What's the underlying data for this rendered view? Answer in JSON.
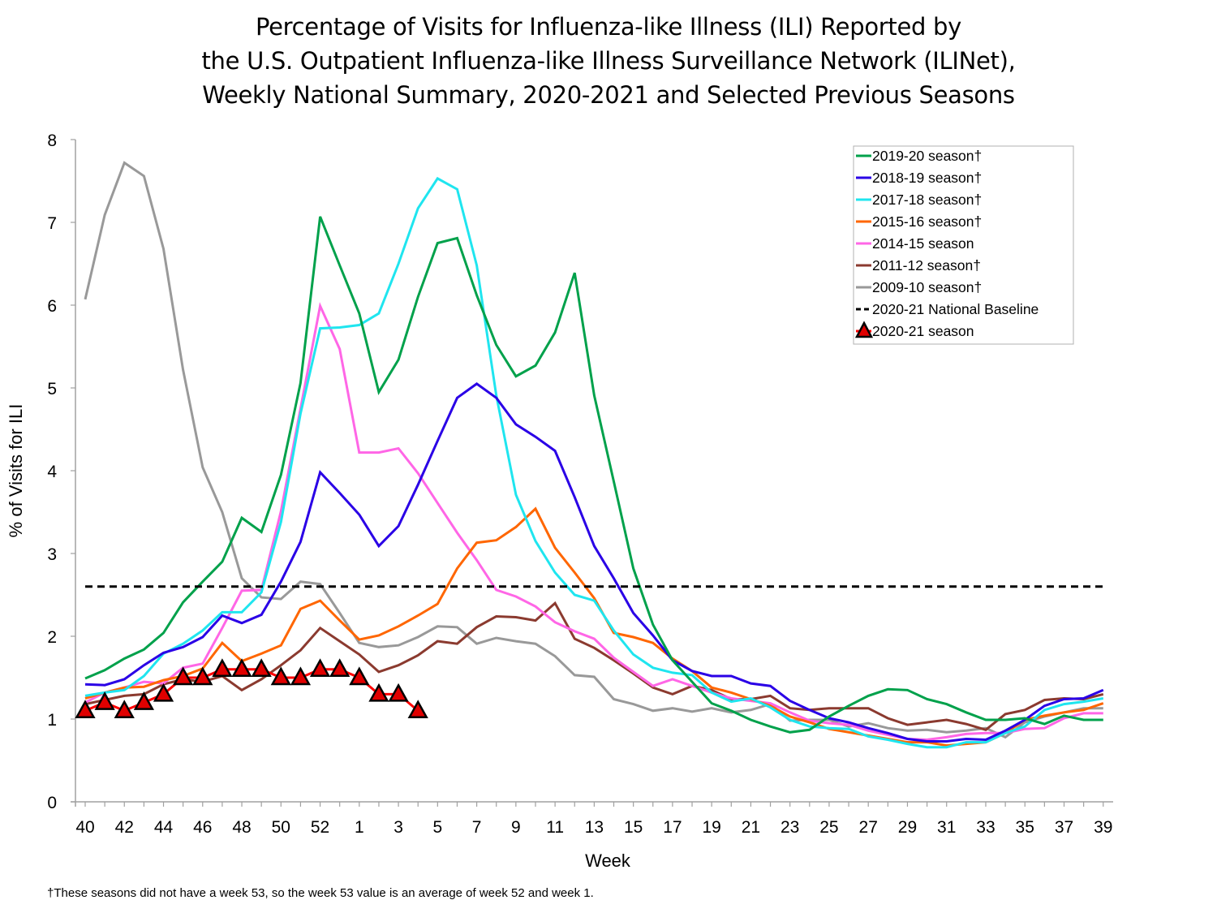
{
  "chart_data": {
    "type": "line",
    "title_lines": [
      "Percentage of Visits for Influenza-like Illness (ILI) Reported by",
      "the U.S. Outpatient Influenza-like Illness Surveillance Network (ILINet),",
      "Weekly National Summary, 2020-2021 and Selected Previous Seasons"
    ],
    "xlabel": "Week",
    "ylabel": "% of Visits for ILI",
    "ylim": [
      0,
      8
    ],
    "yticks": [
      0,
      1,
      2,
      3,
      4,
      5,
      6,
      7,
      8
    ],
    "x": [
      40,
      41,
      42,
      43,
      44,
      45,
      46,
      47,
      48,
      49,
      50,
      51,
      52,
      53,
      1,
      2,
      3,
      4,
      5,
      6,
      7,
      8,
      9,
      10,
      11,
      12,
      13,
      14,
      15,
      16,
      17,
      18,
      19,
      20,
      21,
      22,
      23,
      24,
      25,
      26,
      27,
      28,
      29,
      30,
      31,
      32,
      33,
      34,
      35,
      36,
      37,
      38,
      39
    ],
    "xtick_labels": [
      "40",
      "42",
      "44",
      "46",
      "48",
      "50",
      "52",
      "1",
      "3",
      "5",
      "7",
      "9",
      "11",
      "13",
      "15",
      "17",
      "19",
      "21",
      "23",
      "25",
      "27",
      "29",
      "31",
      "33",
      "35",
      "37",
      "39"
    ],
    "grid": false,
    "legend_position": "top-right",
    "series": [
      {
        "name": "2019-20 season†",
        "color": "#00A14B",
        "style": "solid",
        "values": [
          1.49,
          1.59,
          1.73,
          1.84,
          2.04,
          2.41,
          2.66,
          2.9,
          3.43,
          3.26,
          3.95,
          5.06,
          7.07,
          6.48,
          5.9,
          4.95,
          5.34,
          6.1,
          6.75,
          6.81,
          6.12,
          5.52,
          5.14,
          5.27,
          5.67,
          6.39,
          4.91,
          3.87,
          2.82,
          2.14,
          1.71,
          1.45,
          1.19,
          1.1,
          0.99,
          0.91,
          0.84,
          0.87,
          1.03,
          1.16,
          1.28,
          1.36,
          1.35,
          1.24,
          1.18,
          1.08,
          0.99,
          0.99,
          1.01,
          0.94,
          1.04,
          0.99,
          0.99
        ]
      },
      {
        "name": "2018-19 season†",
        "color": "#2A00E6",
        "style": "solid",
        "values": [
          1.42,
          1.41,
          1.48,
          1.65,
          1.8,
          1.87,
          1.99,
          2.25,
          2.16,
          2.26,
          2.66,
          3.14,
          3.98,
          3.73,
          3.47,
          3.09,
          3.33,
          3.83,
          4.36,
          4.88,
          5.05,
          4.88,
          4.56,
          4.41,
          4.24,
          3.68,
          3.09,
          2.7,
          2.28,
          2.01,
          1.71,
          1.58,
          1.52,
          1.52,
          1.43,
          1.4,
          1.22,
          1.11,
          1.01,
          0.96,
          0.89,
          0.83,
          0.76,
          0.73,
          0.73,
          0.76,
          0.75,
          0.86,
          0.99,
          1.16,
          1.24,
          1.25,
          1.35
        ]
      },
      {
        "name": "2017-18 season†",
        "color": "#1FE5EF",
        "style": "solid",
        "values": [
          1.28,
          1.32,
          1.35,
          1.52,
          1.79,
          1.91,
          2.07,
          2.29,
          2.29,
          2.53,
          3.38,
          4.69,
          5.72,
          5.73,
          5.76,
          5.9,
          6.5,
          7.17,
          7.53,
          7.4,
          6.48,
          4.91,
          3.71,
          3.15,
          2.77,
          2.5,
          2.43,
          2.07,
          1.78,
          1.62,
          1.56,
          1.53,
          1.32,
          1.21,
          1.25,
          1.14,
          0.99,
          0.91,
          0.89,
          0.88,
          0.79,
          0.75,
          0.7,
          0.66,
          0.66,
          0.72,
          0.72,
          0.83,
          0.91,
          1.11,
          1.18,
          1.21,
          1.25
        ]
      },
      {
        "name": "2015-16 season†",
        "color": "#FF6600",
        "style": "solid",
        "values": [
          1.25,
          1.32,
          1.38,
          1.39,
          1.47,
          1.52,
          1.61,
          1.92,
          1.7,
          1.79,
          1.89,
          2.33,
          2.43,
          2.19,
          1.96,
          2.01,
          2.12,
          2.25,
          2.39,
          2.82,
          3.13,
          3.16,
          3.32,
          3.54,
          3.07,
          2.77,
          2.46,
          2.04,
          1.99,
          1.92,
          1.73,
          1.58,
          1.38,
          1.32,
          1.24,
          1.16,
          1.03,
          0.96,
          0.88,
          0.84,
          0.8,
          0.76,
          0.72,
          0.72,
          0.68,
          0.7,
          0.72,
          0.83,
          0.99,
          1.04,
          1.08,
          1.11,
          1.19
        ]
      },
      {
        "name": "2014-15 season",
        "color": "#FF66E6",
        "style": "solid",
        "values": [
          1.2,
          1.32,
          1.38,
          1.45,
          1.43,
          1.62,
          1.67,
          2.1,
          2.55,
          2.56,
          3.51,
          4.75,
          5.99,
          5.47,
          4.22,
          4.22,
          4.27,
          3.97,
          3.61,
          3.25,
          2.92,
          2.56,
          2.48,
          2.36,
          2.17,
          2.06,
          1.97,
          1.74,
          1.57,
          1.4,
          1.48,
          1.4,
          1.32,
          1.25,
          1.22,
          1.19,
          1.08,
          0.98,
          0.95,
          0.93,
          0.86,
          0.81,
          0.76,
          0.75,
          0.78,
          0.82,
          0.83,
          0.83,
          0.88,
          0.89,
          1.01,
          1.07,
          1.07
        ]
      },
      {
        "name": "2011-12 season†",
        "color": "#8B3A2F",
        "style": "solid",
        "values": [
          1.18,
          1.23,
          1.28,
          1.3,
          1.42,
          1.48,
          1.45,
          1.52,
          1.35,
          1.48,
          1.65,
          1.83,
          2.1,
          1.94,
          1.78,
          1.57,
          1.65,
          1.77,
          1.94,
          1.91,
          2.11,
          2.24,
          2.23,
          2.19,
          2.4,
          1.97,
          1.86,
          1.71,
          1.55,
          1.38,
          1.3,
          1.4,
          1.35,
          1.24,
          1.24,
          1.28,
          1.13,
          1.11,
          1.13,
          1.13,
          1.13,
          1.01,
          0.93,
          0.96,
          0.99,
          0.94,
          0.87,
          1.06,
          1.11,
          1.23,
          1.25,
          1.24,
          1.3
        ]
      },
      {
        "name": "2009-10 season†",
        "color": "#999999",
        "style": "solid",
        "values": [
          6.07,
          7.09,
          7.72,
          7.56,
          6.68,
          5.22,
          4.04,
          3.5,
          2.7,
          2.47,
          2.45,
          2.66,
          2.63,
          2.28,
          1.92,
          1.87,
          1.89,
          1.99,
          2.12,
          2.11,
          1.91,
          1.98,
          1.94,
          1.91,
          1.76,
          1.53,
          1.51,
          1.24,
          1.18,
          1.1,
          1.13,
          1.09,
          1.13,
          1.08,
          1.11,
          1.18,
          0.98,
          0.99,
          0.99,
          0.91,
          0.95,
          0.89,
          0.86,
          0.87,
          0.84,
          0.86,
          0.89,
          0.78,
          0.96,
          1.03,
          1.08,
          1.13,
          1.13
        ]
      },
      {
        "name": "2020-21 National Baseline",
        "color": "#000000",
        "style": "dashed",
        "values": [
          2.6
        ]
      },
      {
        "name": "2020-21 season",
        "color": "#FF0000",
        "marker": "triangle",
        "marker_fill": "#E00000",
        "marker_edge": "#000000",
        "style": "solid",
        "values": [
          1.1,
          1.2,
          1.1,
          1.2,
          1.3,
          1.5,
          1.5,
          1.6,
          1.6,
          1.6,
          1.5,
          1.5,
          1.6,
          1.6,
          1.5,
          1.3,
          1.3,
          1.1
        ]
      }
    ],
    "footnote": "†These seasons did not have a week 53, so the week 53 value is an average of week 52 and week 1."
  }
}
